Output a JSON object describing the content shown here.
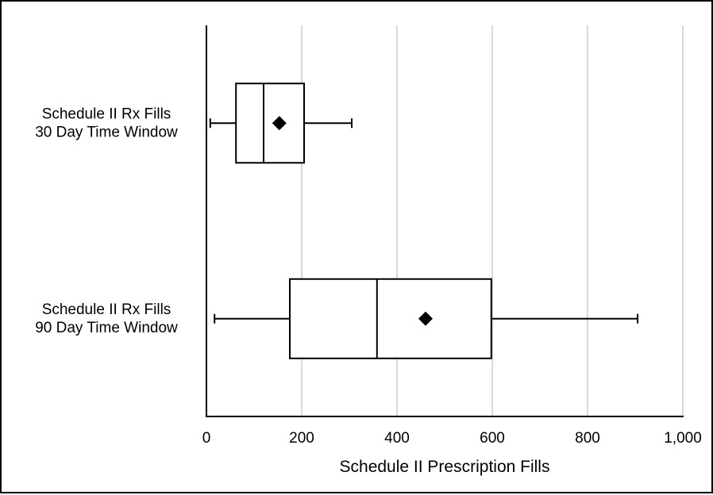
{
  "chart_data": {
    "type": "box",
    "orientation": "horizontal",
    "title": "",
    "xlabel": "Schedule II Prescription Fills",
    "ylabel": "",
    "xlim": [
      0,
      1000
    ],
    "xticks": [
      0,
      200,
      400,
      600,
      800,
      1000
    ],
    "xtick_labels": [
      "0",
      "200",
      "400",
      "600",
      "800",
      "1,000"
    ],
    "grid": "vertical",
    "categories": [
      {
        "label_lines": [
          "Schedule II Rx Fills",
          "30 Day Time Window"
        ],
        "whisker_low": 8,
        "q1": 62,
        "median": 120,
        "q3": 205,
        "whisker_high": 305,
        "mean": 153
      },
      {
        "label_lines": [
          "Schedule II Rx Fills",
          "90 Day Time Window"
        ],
        "whisker_low": 17,
        "q1": 175,
        "median": 358,
        "q3": 598,
        "whisker_high": 905,
        "mean": 460
      }
    ],
    "colors": {
      "box_stroke": "#000000",
      "box_fill": "#ffffff",
      "grid": "#d9d9d9",
      "mean_marker": "#000000"
    }
  }
}
